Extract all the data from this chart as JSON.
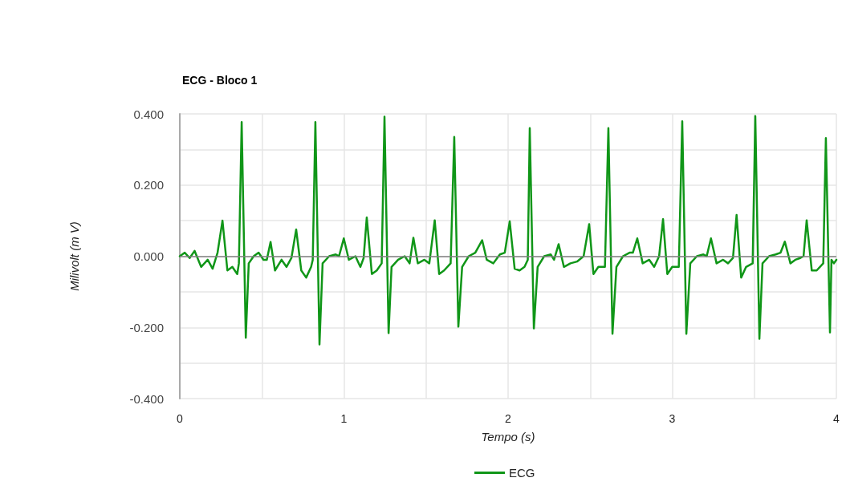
{
  "chart_data": {
    "type": "line",
    "title": "ECG - Bloco 1",
    "xlabel": "Tempo (s)",
    "ylabel": "Milivolt (m V)",
    "xlim": [
      0,
      4
    ],
    "xticks": [
      0,
      {
        "value": 0.5,
        "label": null
      },
      1,
      {
        "value": 1.5,
        "label": null
      },
      2,
      {
        "value": 2.5,
        "label": null
      },
      3,
      {
        "value": 3.5,
        "label": null
      },
      4
    ],
    "ylim": [
      -0.4,
      0.4
    ],
    "yticks": [
      {
        "value": -0.4,
        "label": "-0.400"
      },
      {
        "value": -0.3,
        "label": null
      },
      {
        "value": -0.2,
        "label": "-0.200"
      },
      {
        "value": -0.1,
        "label": null
      },
      {
        "value": 0,
        "label": "0.000"
      },
      {
        "value": 0.1,
        "label": null
      },
      {
        "value": 0.2,
        "label": "0.200"
      },
      {
        "value": 0.3,
        "label": null
      },
      {
        "value": 0.4,
        "label": "0.400"
      }
    ],
    "grid": true,
    "legend": "bottom",
    "ref_lines": [
      {
        "axis": "y",
        "value": 0,
        "color": "#808080"
      }
    ],
    "series": [
      {
        "name": "ECG",
        "color": "#109618",
        "x": [
          0,
          0.03,
          0.06,
          0.09,
          0.13,
          0.17,
          0.2,
          0.23,
          0.26,
          0.29,
          0.32,
          0.35,
          0.36,
          0.377,
          0.402,
          0.42,
          0.45,
          0.48,
          0.51,
          0.53,
          0.553,
          0.58,
          0.62,
          0.65,
          0.68,
          0.709,
          0.74,
          0.77,
          0.8,
          0.81,
          0.826,
          0.851,
          0.87,
          0.91,
          0.95,
          0.97,
          0.999,
          1.03,
          1.07,
          1.1,
          1.12,
          1.139,
          1.17,
          1.2,
          1.23,
          1.247,
          1.272,
          1.29,
          1.33,
          1.37,
          1.4,
          1.423,
          1.45,
          1.49,
          1.52,
          1.553,
          1.58,
          1.61,
          1.65,
          1.672,
          1.697,
          1.72,
          1.76,
          1.8,
          1.842,
          1.87,
          1.91,
          1.95,
          1.98,
          2.01,
          2.04,
          2.07,
          2.1,
          2.12,
          2.132,
          2.157,
          2.18,
          2.22,
          2.26,
          2.28,
          2.308,
          2.34,
          2.38,
          2.42,
          2.46,
          2.494,
          2.52,
          2.55,
          2.59,
          2.611,
          2.636,
          2.66,
          2.7,
          2.74,
          2.76,
          2.787,
          2.82,
          2.86,
          2.89,
          2.92,
          2.944,
          2.97,
          3.0,
          3.04,
          3.061,
          3.086,
          3.11,
          3.15,
          3.19,
          3.21,
          3.236,
          3.27,
          3.31,
          3.34,
          3.37,
          3.392,
          3.42,
          3.45,
          3.49,
          3.506,
          3.531,
          3.55,
          3.59,
          3.63,
          3.66,
          3.686,
          3.72,
          3.75,
          3.78,
          3.8,
          3.819,
          3.85,
          3.88,
          3.92,
          3.936,
          3.961,
          3.97,
          3.985,
          4.0
        ],
        "values": [
          0,
          0.01,
          -0.005,
          0.015,
          -0.03,
          -0.01,
          -0.035,
          0.01,
          0.1,
          -0.04,
          -0.03,
          -0.05,
          -0.02,
          0.377,
          -0.229,
          -0.02,
          0,
          0.01,
          -0.01,
          -0.01,
          0.04,
          -0.04,
          -0.01,
          -0.03,
          -0.005,
          0.075,
          -0.04,
          -0.06,
          -0.03,
          -0.01,
          0.377,
          -0.248,
          -0.02,
          0,
          0.005,
          0,
          0.05,
          -0.01,
          0,
          -0.03,
          -0.005,
          0.109,
          -0.05,
          -0.04,
          -0.02,
          0.392,
          -0.216,
          -0.03,
          -0.01,
          0,
          -0.02,
          0.052,
          -0.02,
          -0.01,
          -0.02,
          0.101,
          -0.05,
          -0.04,
          -0.02,
          0.335,
          -0.198,
          -0.03,
          0,
          0.01,
          0.045,
          -0.01,
          -0.02,
          0.005,
          0.01,
          0.098,
          -0.035,
          -0.04,
          -0.03,
          -0.01,
          0.36,
          -0.203,
          -0.03,
          0,
          0.005,
          -0.01,
          0.034,
          -0.03,
          -0.02,
          -0.015,
          0,
          0.09,
          -0.05,
          -0.03,
          -0.03,
          0.36,
          -0.218,
          -0.03,
          0,
          0.01,
          0.01,
          0.05,
          -0.02,
          -0.01,
          -0.03,
          0,
          0.104,
          -0.05,
          -0.03,
          -0.03,
          0.379,
          -0.218,
          -0.02,
          0,
          0.005,
          0,
          0.05,
          -0.02,
          -0.01,
          -0.02,
          -0.005,
          0.116,
          -0.06,
          -0.03,
          -0.02,
          0.394,
          -0.232,
          -0.02,
          0,
          0.005,
          0.01,
          0.041,
          -0.02,
          -0.01,
          -0.005,
          0,
          0.101,
          -0.04,
          -0.04,
          -0.02,
          0.332,
          -0.214,
          -0.01,
          -0.02,
          -0.01
        ]
      }
    ]
  }
}
